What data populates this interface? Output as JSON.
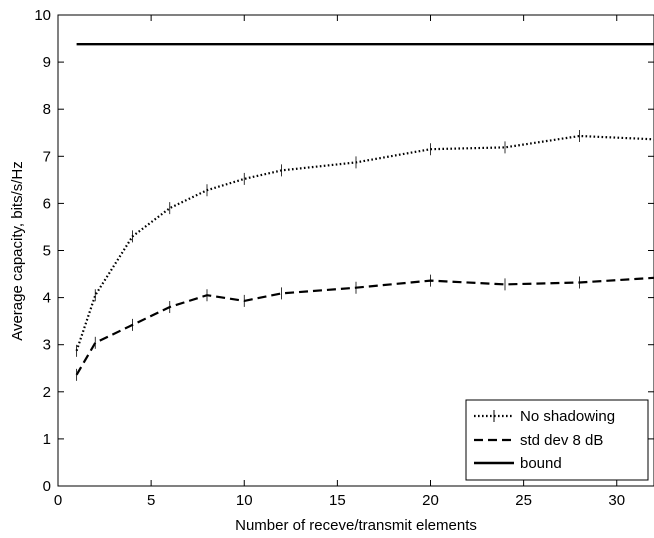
{
  "chart_data": {
    "type": "line",
    "xlabel": "Number of receve/transmit elements",
    "ylabel": "Average capacity, bits/s/Hz",
    "xlim": [
      0,
      32
    ],
    "ylim": [
      0,
      10
    ],
    "xticks": [
      0,
      5,
      10,
      15,
      20,
      25,
      30
    ],
    "yticks": [
      0,
      1,
      2,
      3,
      4,
      5,
      6,
      7,
      8,
      9,
      10
    ],
    "grid": false,
    "legend_position": "bottom-right",
    "series": [
      {
        "name": "No shadowing",
        "style": "dotted",
        "color": "#000000",
        "x": [
          1,
          2,
          4,
          6,
          8,
          10,
          12,
          16,
          20,
          24,
          28,
          32
        ],
        "y": [
          2.87,
          4.05,
          5.3,
          5.9,
          6.28,
          6.52,
          6.7,
          6.87,
          7.15,
          7.19,
          7.43,
          7.36
        ]
      },
      {
        "name": "std dev 8 dB",
        "style": "dashed",
        "color": "#000000",
        "x": [
          1,
          2,
          4,
          6,
          8,
          10,
          12,
          16,
          20,
          24,
          28,
          32
        ],
        "y": [
          2.36,
          3.04,
          3.42,
          3.8,
          4.05,
          3.93,
          4.09,
          4.21,
          4.36,
          4.28,
          4.32,
          4.42
        ]
      },
      {
        "name": "bound",
        "style": "solid",
        "color": "#000000",
        "x": [
          1,
          32
        ],
        "y": [
          9.38,
          9.38
        ]
      }
    ]
  }
}
